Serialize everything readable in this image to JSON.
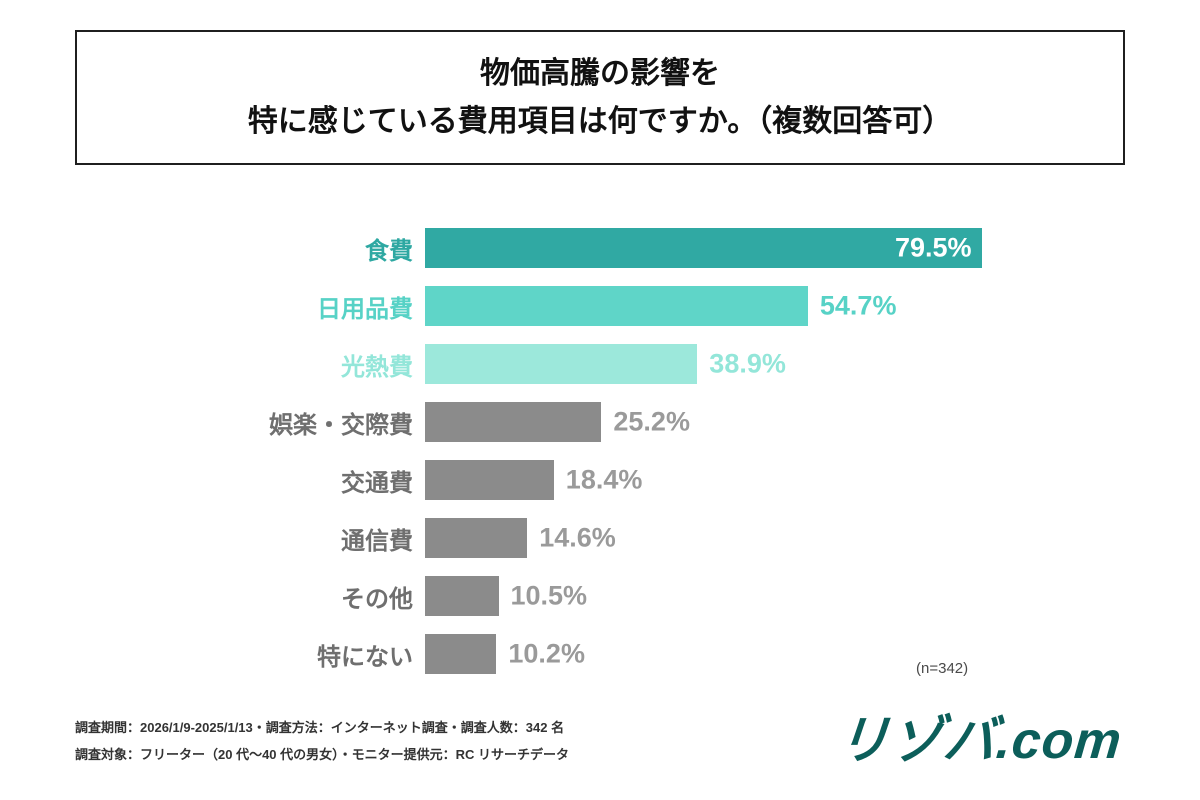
{
  "title": {
    "line1": "物価高騰の影響を",
    "line2": "特に感じている費用項目は何ですか。（複数回答可）"
  },
  "chart_data": {
    "type": "bar",
    "orientation": "horizontal",
    "title": "物価高騰の影響を特に感じている費用項目は何ですか。（複数回答可）",
    "categories": [
      "食費",
      "日用品費",
      "光熱費",
      "娯楽・交際費",
      "交通費",
      "通信費",
      "その他",
      "特にない"
    ],
    "values": [
      79.5,
      54.7,
      38.9,
      25.2,
      18.4,
      14.6,
      10.5,
      10.2
    ],
    "value_labels": [
      "79.5%",
      "54.7%",
      "38.9%",
      "25.2%",
      "18.4%",
      "14.6%",
      "10.5%",
      "10.2%"
    ],
    "bar_colors": [
      "#30a9a3",
      "#5fd5c8",
      "#9ce8db",
      "#8b8b8b",
      "#8b8b8b",
      "#8b8b8b",
      "#8b8b8b",
      "#8b8b8b"
    ],
    "category_label_colors": [
      "#2ea8a2",
      "#57d2c6",
      "#93e6d9",
      "#6f6f6f",
      "#6f6f6f",
      "#6f6f6f",
      "#6f6f6f",
      "#6f6f6f"
    ],
    "value_label_colors": [
      "#ffffff",
      "#57d2c6",
      "#93e6d9",
      "#9a9a9a",
      "#9a9a9a",
      "#9a9a9a",
      "#9a9a9a",
      "#9a9a9a"
    ],
    "value_label_inside": [
      true,
      false,
      false,
      false,
      false,
      false,
      false,
      false
    ],
    "xlim": [
      0,
      100
    ],
    "grid": false,
    "legend": false,
    "n_label": "(n=342)"
  },
  "footer": {
    "note1": "調査期間：2026/1/9-2025/1/13・調査方法：インターネット調査・調査人数：342 名",
    "note2": "調査対象：フリーター（20 代〜40 代の男女）・モニター提供元：RC リサーチデータ",
    "logo": "リゾバ.com"
  }
}
